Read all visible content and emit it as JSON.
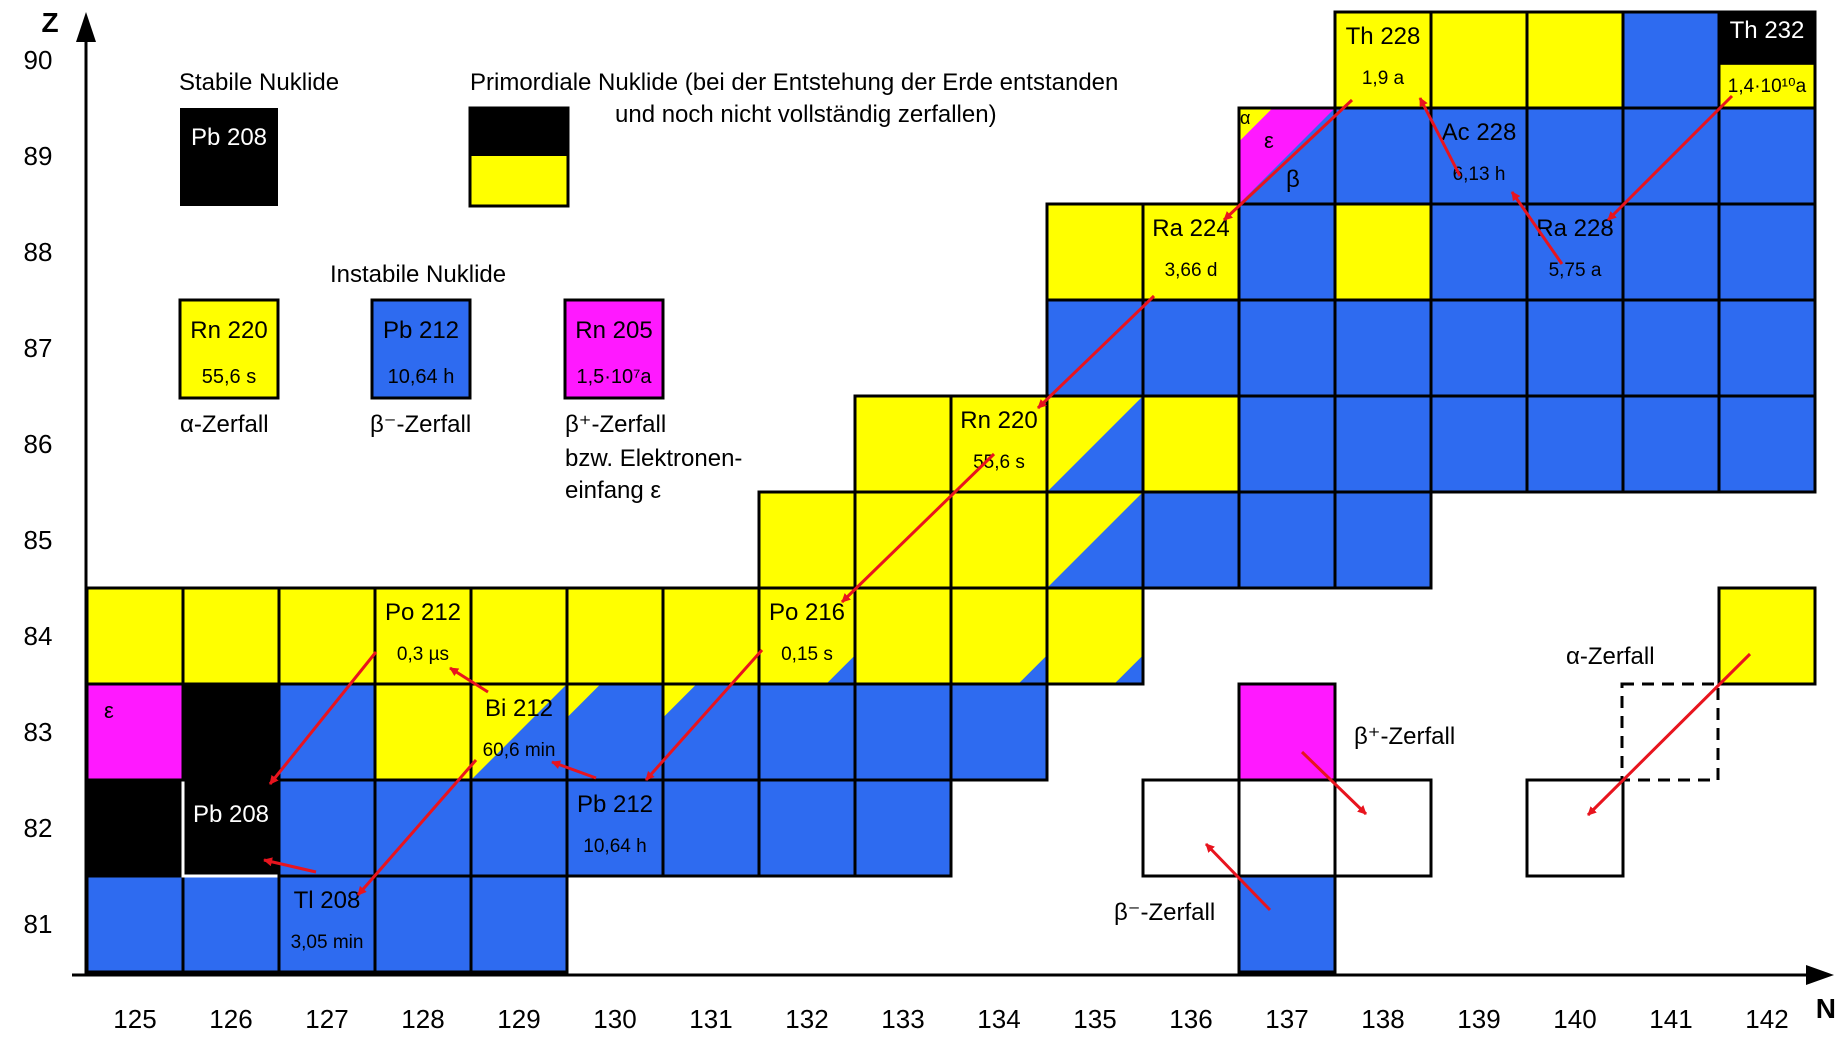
{
  "axes": {
    "y_label": "Z",
    "x_label": "N",
    "z_ticks": [
      "90",
      "89",
      "88",
      "87",
      "86",
      "85",
      "84",
      "83",
      "82",
      "81"
    ],
    "n_ticks": [
      "125",
      "126",
      "127",
      "128",
      "129",
      "130",
      "131",
      "132",
      "133",
      "134",
      "135",
      "136",
      "137",
      "138",
      "139",
      "140",
      "141",
      "142"
    ]
  },
  "colors": {
    "alpha": "#ffff00",
    "beta_minus": "#2e6bf0",
    "beta_plus": "#ff19ff",
    "stable": "#000000",
    "arrow": "#e8141e"
  },
  "legend": {
    "stable_title": "Stabile Nuklide",
    "stable_example": "Pb 208",
    "primordial_line1": "Primordiale Nuklide (bei der Entstehung der Erde entstanden",
    "primordial_line2": "und noch nicht vollständig zerfallen)",
    "unstable_title": "Instabile Nuklide",
    "alpha_name": "Rn 220",
    "alpha_half": "55,6 s",
    "alpha_caption": "α-Zerfall",
    "beta_minus_name": "Pb 212",
    "beta_minus_half": "10,64 h",
    "beta_minus_caption": "β⁻-Zerfall",
    "beta_plus_name": "Rn 205",
    "beta_plus_half": "1,5·10⁷a",
    "beta_plus_caption_1": "β⁺-Zerfall",
    "beta_plus_caption_2": "bzw. Elektronen-",
    "beta_plus_caption_3": "einfang ε"
  },
  "nuclide_labels": [
    {
      "name": "Th 232",
      "half": "1,4·10¹⁰a"
    },
    {
      "name": "Th 228",
      "half": "1,9 a"
    },
    {
      "name": "Ac 228",
      "half": "6,13 h"
    },
    {
      "name": "Ra 228",
      "half": "5,75 a"
    },
    {
      "name": "Ra 224",
      "half": "3,66 d"
    },
    {
      "name": "Rn 220",
      "half": "55,6 s"
    },
    {
      "name": "Po 216",
      "half": "0,15 s"
    },
    {
      "name": "Pb 212",
      "half": "10,64 h"
    },
    {
      "name": "Bi 212",
      "half": "60,6 min"
    },
    {
      "name": "Po 212",
      "half": "0,3 µs"
    },
    {
      "name": "Tl 208",
      "half": "3,05 min"
    },
    {
      "name": "Pb 208",
      "half": ""
    }
  ],
  "cell_marks": {
    "ac225_alpha": "α",
    "ac225_eps": "ε",
    "ac225_beta": "β",
    "bi208_eps": "ε"
  },
  "decay_examples": {
    "alpha": "α-Zerfall",
    "beta_plus": "β⁺-Zerfall",
    "beta_minus": "β⁻-Zerfall"
  }
}
